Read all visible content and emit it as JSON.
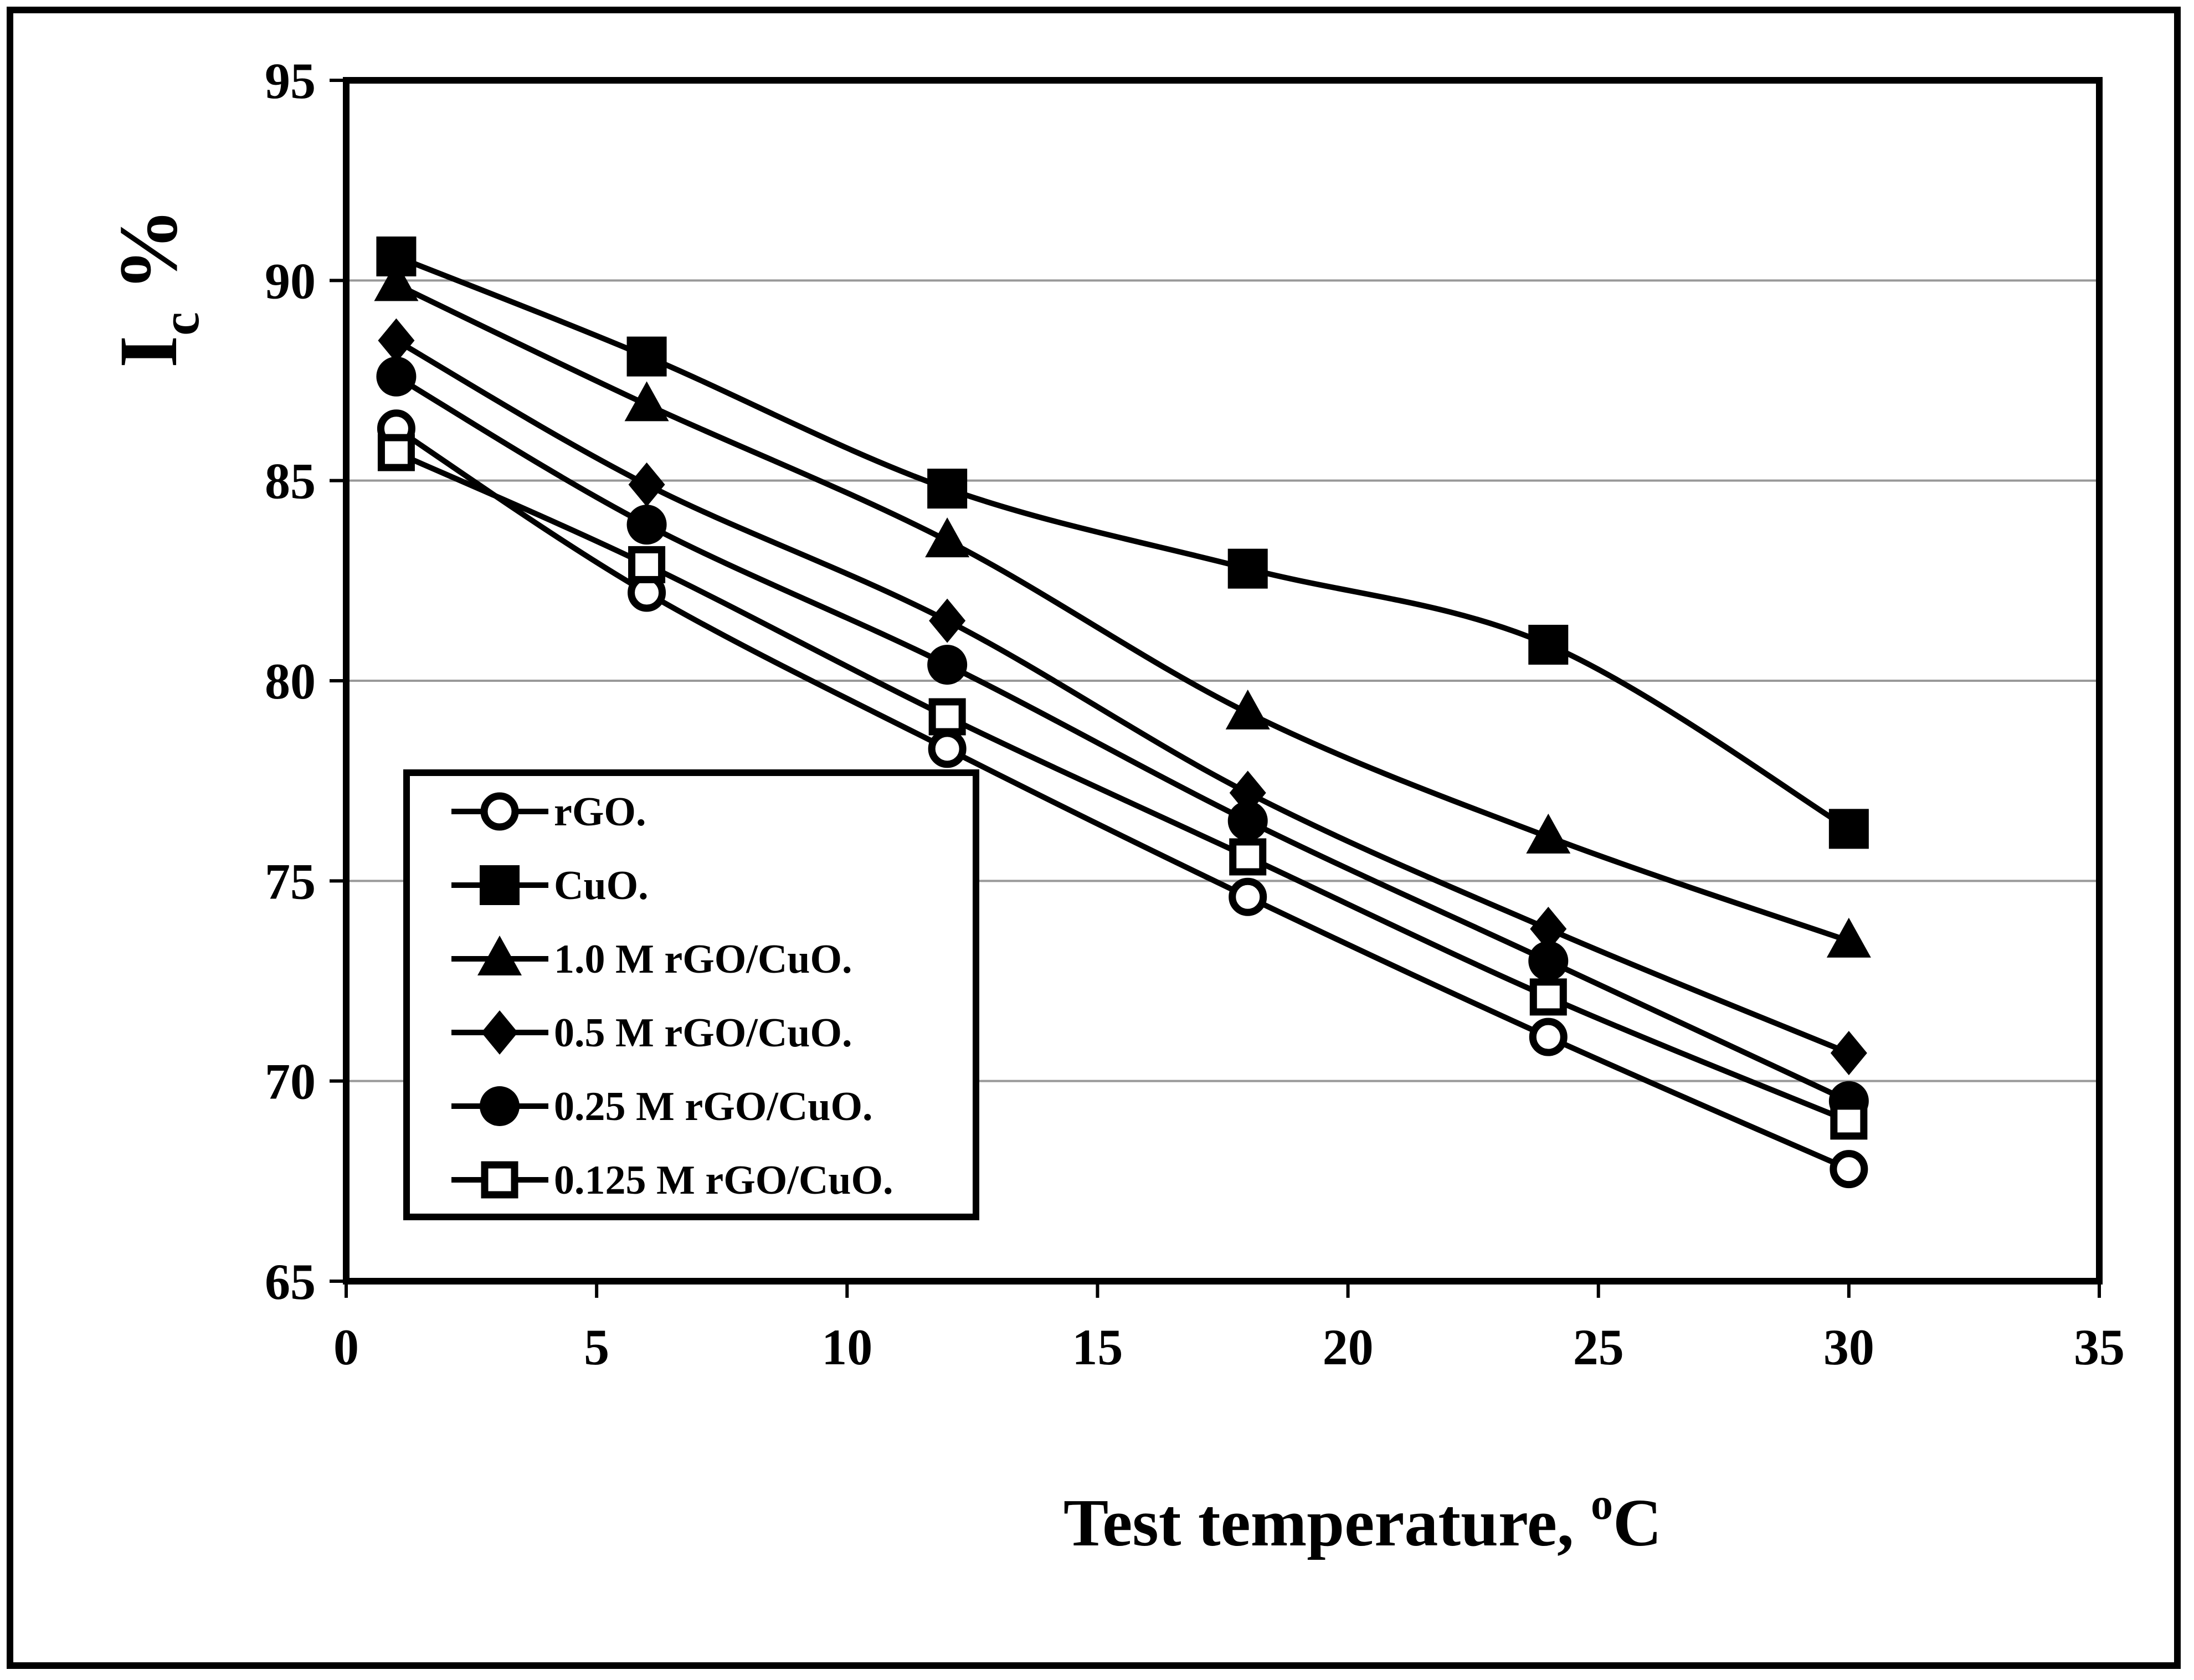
{
  "chart_data": {
    "type": "line",
    "title": "",
    "xlabel": {
      "main": "Test temperature, ",
      "sup": "o",
      "tail": "C"
    },
    "ylabel": {
      "main": "I",
      "sub": "c",
      "tail": " %"
    },
    "xlim": [
      0,
      35
    ],
    "ylim": [
      65,
      95
    ],
    "xticks": [
      0,
      5,
      10,
      15,
      20,
      25,
      30,
      35
    ],
    "yticks": [
      65,
      70,
      75,
      80,
      85,
      90,
      95
    ],
    "grid": "horizontal",
    "legend_position": "bottom-left",
    "x": [
      1,
      6,
      12,
      18,
      24,
      30
    ],
    "series": [
      {
        "name": "rGO.",
        "marker": "circle-open",
        "values": [
          86.3,
          82.2,
          78.3,
          74.6,
          71.1,
          67.8
        ]
      },
      {
        "name": "CuO.",
        "marker": "square-filled",
        "values": [
          90.6,
          88.1,
          84.8,
          82.8,
          80.9,
          76.3
        ]
      },
      {
        "name": "1.0 M rGO/CuO.",
        "marker": "triangle-filled",
        "values": [
          89.9,
          86.9,
          83.5,
          79.2,
          76.1,
          73.5
        ]
      },
      {
        "name": "0.5 M rGO/CuO.",
        "marker": "diamond-filled",
        "values": [
          88.5,
          84.9,
          81.5,
          77.2,
          73.8,
          70.7
        ]
      },
      {
        "name": "0.25 M rGO/CuO.",
        "marker": "circle-filled",
        "values": [
          87.6,
          83.9,
          80.4,
          76.5,
          73.0,
          69.5
        ]
      },
      {
        "name": "0.125 M rGO/CuO.",
        "marker": "square-open",
        "values": [
          85.7,
          82.9,
          79.1,
          75.6,
          72.1,
          69.0
        ]
      }
    ],
    "colors": {
      "line": "#000000",
      "grid": "#999999",
      "background": "#ffffff"
    }
  }
}
